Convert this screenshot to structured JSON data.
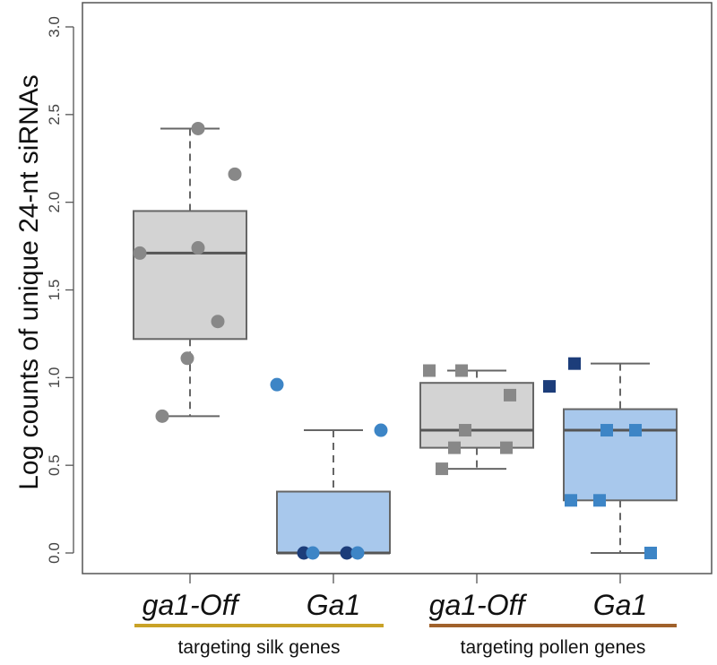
{
  "chart_data": {
    "type": "boxplot",
    "ylabel": "Log counts of unique 24-nt siRNAs",
    "ylim": [
      0,
      3.0
    ],
    "yticks": [
      "0.0",
      "0.5",
      "1.0",
      "1.5",
      "2.0",
      "2.5",
      "3.0"
    ],
    "categories": [
      "ga1-Off",
      "Ga1",
      "ga1-Off",
      "Ga1"
    ],
    "groups": [
      {
        "label": "targeting silk genes",
        "color": "#c9a227"
      },
      {
        "label": "targeting pollen genes",
        "color": "#a0612b"
      }
    ],
    "series": [
      {
        "name": "ga1-Off",
        "group": "targeting silk genes",
        "marker": "circle",
        "fill": "#d3d3d3",
        "box": {
          "whisker_low": 0.78,
          "q1": 1.22,
          "median": 1.71,
          "q3": 1.95,
          "whisker_high": 2.42
        },
        "points": [
          {
            "y": 2.42,
            "color": "#888888"
          },
          {
            "y": 2.16,
            "color": "#888888"
          },
          {
            "y": 1.71,
            "color": "#888888"
          },
          {
            "y": 1.74,
            "color": "#888888"
          },
          {
            "y": 1.32,
            "color": "#888888"
          },
          {
            "y": 1.11,
            "color": "#888888"
          },
          {
            "y": 0.78,
            "color": "#888888"
          }
        ]
      },
      {
        "name": "Ga1",
        "group": "targeting silk genes",
        "marker": "circle",
        "fill": "#a8c8ec",
        "box": {
          "whisker_low": 0.0,
          "q1": 0.0,
          "median": 0.0,
          "q3": 0.35,
          "whisker_high": 0.7
        },
        "points": [
          {
            "y": 0.96,
            "color": "#3d85c6"
          },
          {
            "y": 0.7,
            "color": "#3d85c6"
          },
          {
            "y": 0.0,
            "color": "#1c3d7a"
          },
          {
            "y": 0.0,
            "color": "#3d85c6"
          },
          {
            "y": 0.0,
            "color": "#1c3d7a"
          },
          {
            "y": 0.0,
            "color": "#3d85c6"
          }
        ]
      },
      {
        "name": "ga1-Off",
        "group": "targeting pollen genes",
        "marker": "square",
        "fill": "#d3d3d3",
        "box": {
          "whisker_low": 0.48,
          "q1": 0.6,
          "median": 0.7,
          "q3": 0.97,
          "whisker_high": 1.04
        },
        "points": [
          {
            "y": 1.04,
            "color": "#888888"
          },
          {
            "y": 1.04,
            "color": "#888888"
          },
          {
            "y": 0.9,
            "color": "#888888"
          },
          {
            "y": 0.7,
            "color": "#888888"
          },
          {
            "y": 0.6,
            "color": "#888888"
          },
          {
            "y": 0.6,
            "color": "#888888"
          },
          {
            "y": 0.48,
            "color": "#888888"
          }
        ]
      },
      {
        "name": "Ga1",
        "group": "targeting pollen genes",
        "marker": "square",
        "fill": "#a8c8ec",
        "box": {
          "whisker_low": 0.0,
          "q1": 0.3,
          "median": 0.7,
          "q3": 0.82,
          "whisker_high": 1.08
        },
        "points": [
          {
            "y": 1.08,
            "color": "#1c3d7a"
          },
          {
            "y": 0.95,
            "color": "#1c3d7a"
          },
          {
            "y": 0.7,
            "color": "#3d85c6"
          },
          {
            "y": 0.7,
            "color": "#3d85c6"
          },
          {
            "y": 0.3,
            "color": "#3d85c6"
          },
          {
            "y": 0.3,
            "color": "#3d85c6"
          },
          {
            "y": 0.0,
            "color": "#3d85c6"
          }
        ]
      }
    ]
  }
}
